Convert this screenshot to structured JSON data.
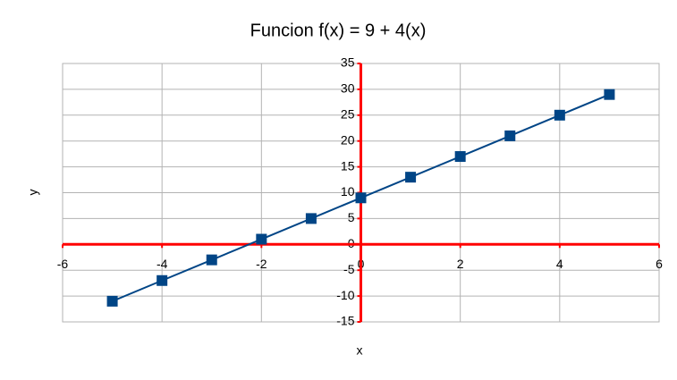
{
  "chart_data": {
    "type": "scatter",
    "title": "Funcion f(x) = 9 + 4(x)",
    "x_label": "x",
    "y_label": "y",
    "x": [
      -5,
      -4,
      -3,
      -2,
      -1,
      0,
      1,
      2,
      3,
      4,
      5
    ],
    "values": [
      -11,
      -7,
      -3,
      1,
      5,
      9,
      13,
      17,
      21,
      25,
      29
    ],
    "color": "#004586",
    "axis_color": "#ff0000",
    "xlim": [
      -6,
      6
    ],
    "xticks": [
      -6,
      -4,
      -2,
      0,
      2,
      4,
      6
    ],
    "ylim": [
      -15,
      35
    ],
    "yticks": [
      -15,
      -10,
      -5,
      0,
      5,
      10,
      15,
      20,
      25,
      30,
      35
    ],
    "grid": true
  }
}
